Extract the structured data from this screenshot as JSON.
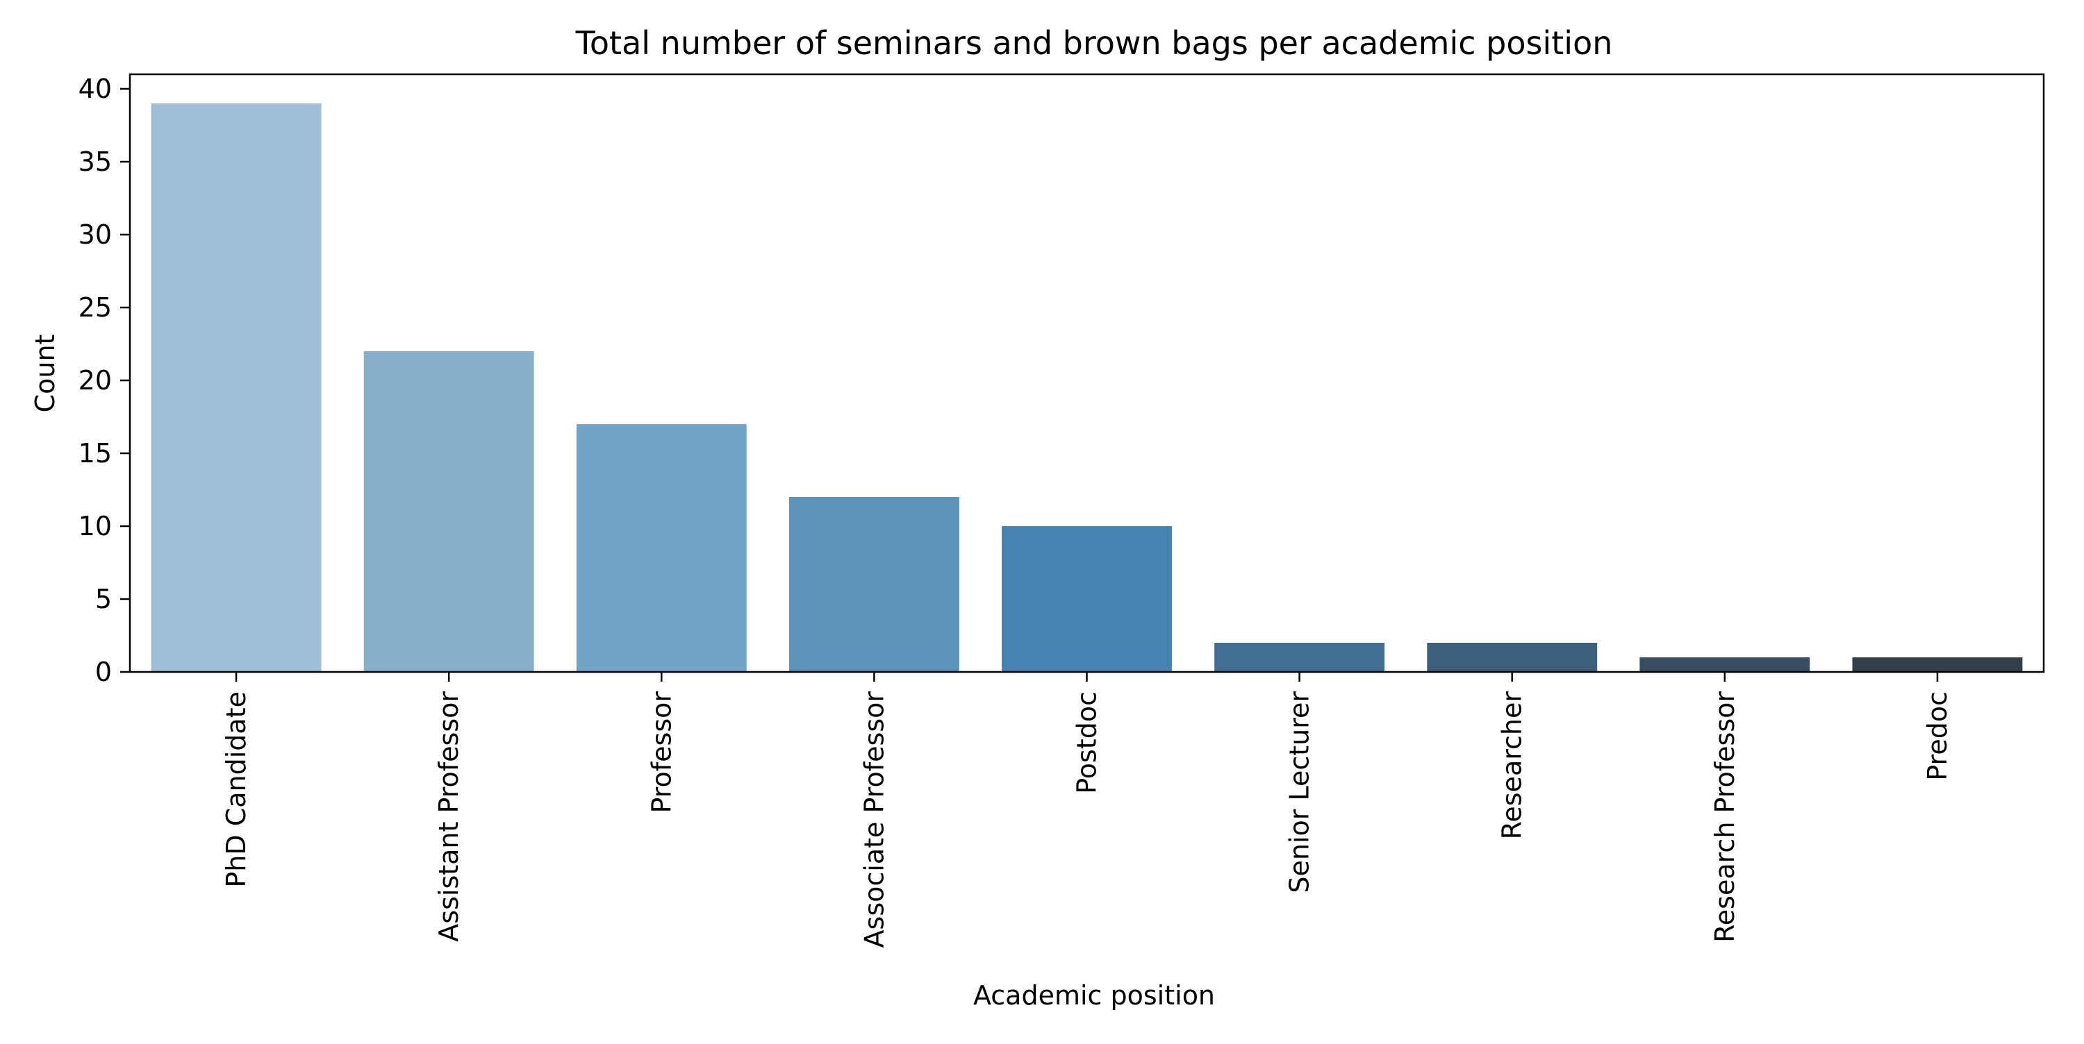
{
  "chart_data": {
    "type": "bar",
    "title": "Total number of seminars and brown bags per academic position",
    "xlabel": "Academic position",
    "ylabel": "Count",
    "categories": [
      "PhD Candidate",
      "Assistant Professor",
      "Professor",
      "Associate Professor",
      "Postdoc",
      "Senior Lecturer",
      "Researcher",
      "Research Professor",
      "Predoc"
    ],
    "values": [
      39,
      22,
      17,
      12,
      10,
      2,
      2,
      1,
      1
    ],
    "colors": [
      "#9ebfd7",
      "#88afca",
      "#73a3c5",
      "#5d92b9",
      "#4783b0",
      "#416e91",
      "#3e5f7b",
      "#384d60",
      "#323e48"
    ],
    "ylim": [
      0,
      41
    ],
    "yticks": [
      0,
      5,
      10,
      15,
      20,
      25,
      30,
      35,
      40
    ],
    "grid": false,
    "legend": "none"
  }
}
